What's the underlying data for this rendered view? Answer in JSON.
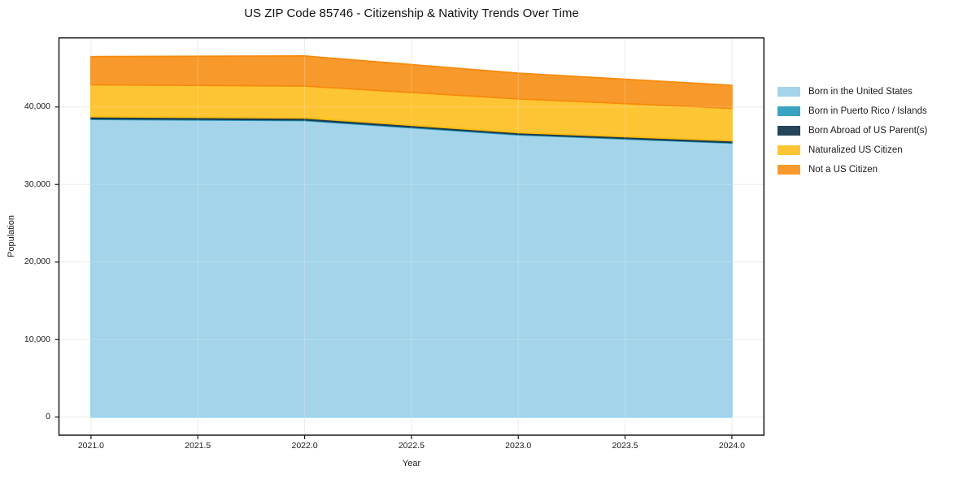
{
  "figure": {
    "background": "#ffffff"
  },
  "chart_data": {
    "type": "area",
    "stacked": true,
    "title": "US ZIP Code 85746 - Citizenship & Nativity Trends Over Time",
    "xlabel": "Year",
    "ylabel": "Population",
    "x": [
      2021,
      2022,
      2023,
      2024
    ],
    "series": [
      {
        "name": "Born in the United States",
        "color": "#A4D4EA",
        "edge": "#87CEEB",
        "values": [
          38400,
          38250,
          36400,
          35350
        ]
      },
      {
        "name": "Born in Puerto Rico / Islands",
        "color": "#3AA3C1",
        "edge": "#2595B8",
        "values": [
          100,
          100,
          100,
          80
        ]
      },
      {
        "name": "Born Abroad of US Parent(s)",
        "color": "#25455A",
        "edge": "#1C3A4E",
        "values": [
          250,
          230,
          200,
          220
        ]
      },
      {
        "name": "Naturalized US Citizen",
        "color": "#FDC533",
        "edge": "#FCBB0F",
        "values": [
          4120,
          4120,
          4350,
          4180
        ]
      },
      {
        "name": "Not a US Citizen",
        "color": "#F89A2B",
        "edge": "#F68A0E",
        "values": [
          3630,
          3880,
          3310,
          2960
        ]
      }
    ],
    "totals": [
      46500,
      46580,
      44360,
      42790
    ],
    "xticks": [
      2021.0,
      2021.5,
      2022.0,
      2022.5,
      2023.0,
      2023.5,
      2024.0
    ],
    "xtick_labels": [
      "2021.0",
      "2021.5",
      "2022.0",
      "2022.5",
      "2023.0",
      "2023.5",
      "2024.0"
    ],
    "yticks": [
      0,
      10000,
      20000,
      30000,
      40000
    ],
    "ytick_labels": [
      "0",
      "10,000",
      "20,000",
      "30,000",
      "40,000"
    ],
    "xlim": [
      2020.85,
      2024.15
    ],
    "ylim": [
      -2330,
      48910
    ],
    "grid": true,
    "legend_position": "right-outside",
    "colors": {
      "spine": "#1a1a1a",
      "grid": "#e7e7e7",
      "grid_over_area": "rgba(255,255,255,0.22)",
      "tick": "#1a1a1a"
    }
  }
}
